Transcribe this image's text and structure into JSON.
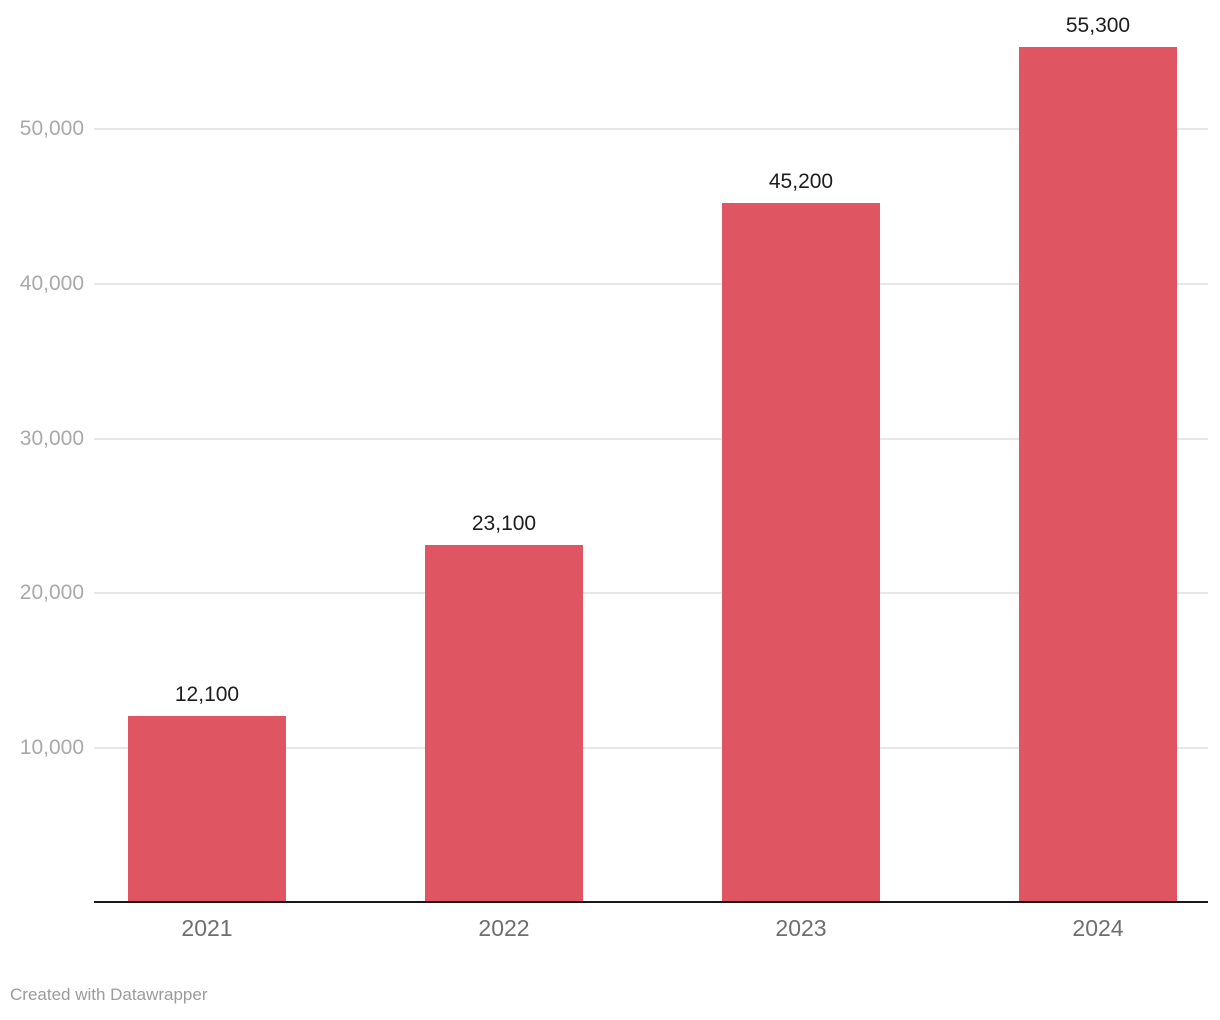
{
  "chart_data": {
    "type": "bar",
    "categories": [
      "2021",
      "2022",
      "2023",
      "2024"
    ],
    "values": [
      12100,
      23100,
      45200,
      55300
    ],
    "value_labels": [
      "12,100",
      "23,100",
      "45,200",
      "55,300"
    ],
    "y_ticks": [
      {
        "value": 10000,
        "label": "10,000"
      },
      {
        "value": 20000,
        "label": "20,000"
      },
      {
        "value": 30000,
        "label": "30,000"
      },
      {
        "value": 40000,
        "label": "40,000"
      },
      {
        "value": 50000,
        "label": "50,000"
      }
    ],
    "ylim": [
      0,
      55900
    ],
    "title": "",
    "xlabel": "",
    "ylabel": "",
    "grid": true,
    "legend": "none",
    "colors": {
      "bar": "#e05562",
      "gridline": "#e7e7e7",
      "axis_line": "#181818",
      "y_tick_label": "#a9a9a9",
      "x_tick_label": "#6e6e6e",
      "value_label": "#1d1d1d",
      "credit": "#9b9b9b"
    }
  },
  "footer": {
    "credit": "Created with Datawrapper"
  }
}
